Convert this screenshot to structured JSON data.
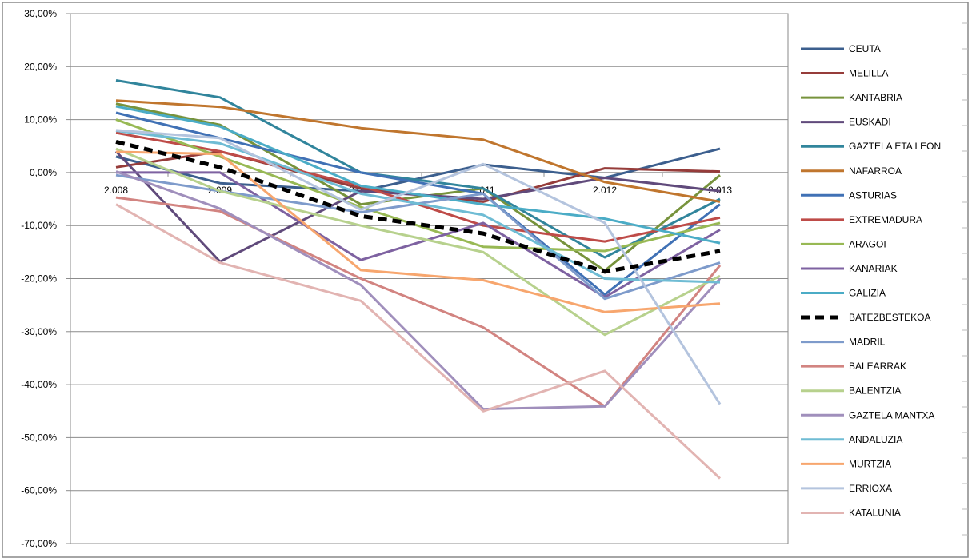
{
  "chart_data": {
    "type": "line",
    "title": "",
    "xlabel": "",
    "ylabel": "",
    "categories": [
      "2.008",
      "2.009",
      "2.010",
      "2.011",
      "2.012",
      "2.013"
    ],
    "ylim": [
      -70,
      30
    ],
    "y_ticks": [
      "30,00%",
      "20,00%",
      "10,00%",
      "0,00%",
      "-10,00%",
      "-20,00%",
      "-30,00%",
      "-40,00%",
      "-50,00%",
      "-60,00%",
      "-70,00%"
    ],
    "grid": true,
    "legend_position": "right",
    "series": [
      {
        "name": "CEUTA",
        "color": "#3C5F8E",
        "dashed": false,
        "values": [
          3.0,
          -2.0,
          -3.5,
          1.5,
          -1.0,
          4.5
        ]
      },
      {
        "name": "MELILLA",
        "color": "#963C3A",
        "dashed": false,
        "values": [
          1.0,
          4.0,
          -3.0,
          -5.5,
          0.8,
          0.2
        ]
      },
      {
        "name": "KANTABRIA",
        "color": "#77933C",
        "dashed": false,
        "values": [
          13.0,
          9.0,
          -6.0,
          -3.0,
          -18.5,
          -0.5
        ]
      },
      {
        "name": "EUSKADI",
        "color": "#604A7B",
        "dashed": false,
        "values": [
          4.0,
          -16.8,
          -3.5,
          -5.0,
          -1.0,
          -3.5
        ]
      },
      {
        "name": "GAZTELA ETA LEON",
        "color": "#31859C",
        "dashed": false,
        "values": [
          17.4,
          14.2,
          0.0,
          -3.0,
          -16.0,
          -5.0
        ]
      },
      {
        "name": "NAFARROA",
        "color": "#C0762E",
        "dashed": false,
        "values": [
          13.6,
          12.4,
          8.4,
          6.2,
          -1.8,
          -5.5
        ]
      },
      {
        "name": "ASTURIAS",
        "color": "#4071B5",
        "dashed": false,
        "values": [
          11.3,
          6.5,
          0.0,
          -4.0,
          -23.0,
          -6.0
        ]
      },
      {
        "name": "EXTREMADURA",
        "color": "#BE4B48",
        "dashed": false,
        "values": [
          7.5,
          4.0,
          -2.5,
          -10.0,
          -13.0,
          -8.5
        ]
      },
      {
        "name": "ARAGOI",
        "color": "#98B954",
        "dashed": false,
        "values": [
          10.0,
          3.0,
          -6.5,
          -14.0,
          -14.8,
          -9.5
        ]
      },
      {
        "name": "KANARIAK",
        "color": "#7E62A1",
        "dashed": false,
        "values": [
          0.0,
          0.0,
          -16.5,
          -9.5,
          -23.5,
          -10.8
        ]
      },
      {
        "name": "GALIZIA",
        "color": "#4BACC6",
        "dashed": false,
        "values": [
          12.5,
          8.7,
          -2.5,
          -6.0,
          -8.7,
          -13.3
        ]
      },
      {
        "name": "BATEZBESTEKOA",
        "color": "#000000",
        "dashed": true,
        "values": [
          5.8,
          1.0,
          -8.2,
          -11.5,
          -18.7,
          -14.8
        ]
      },
      {
        "name": "MADRIL",
        "color": "#7E9BCB",
        "dashed": false,
        "values": [
          -0.5,
          -3.5,
          -7.5,
          -4.0,
          -23.8,
          -17.0
        ]
      },
      {
        "name": "BALEARRAK",
        "color": "#D28481",
        "dashed": false,
        "values": [
          -4.7,
          -7.3,
          -20.0,
          -29.2,
          -44.1,
          -17.5
        ]
      },
      {
        "name": "BALENTZIA",
        "color": "#B7D18D",
        "dashed": false,
        "values": [
          4.5,
          -3.5,
          -10.0,
          -15.0,
          -30.6,
          -19.5
        ]
      },
      {
        "name": "GAZTELA MANTXA",
        "color": "#A08FBC",
        "dashed": false,
        "values": [
          0.2,
          -6.8,
          -21.2,
          -44.6,
          -44.1,
          -20.0
        ]
      },
      {
        "name": "ANDALUZIA",
        "color": "#6FBCD4",
        "dashed": false,
        "values": [
          7.9,
          5.5,
          -4.0,
          -8.0,
          -20.0,
          -20.7
        ]
      },
      {
        "name": "MURTZIA",
        "color": "#F7A66E",
        "dashed": false,
        "values": [
          3.9,
          3.5,
          -18.4,
          -20.3,
          -26.3,
          -24.7
        ]
      },
      {
        "name": "ERRIOXA",
        "color": "#B4C4DE",
        "dashed": false,
        "values": [
          8.0,
          6.5,
          -7.0,
          1.6,
          -9.5,
          -43.7
        ]
      },
      {
        "name": "KATALUNIA",
        "color": "#E2B4B2",
        "dashed": false,
        "values": [
          -6.0,
          -17.0,
          -24.2,
          -45.0,
          -37.4,
          -57.7
        ]
      }
    ]
  }
}
